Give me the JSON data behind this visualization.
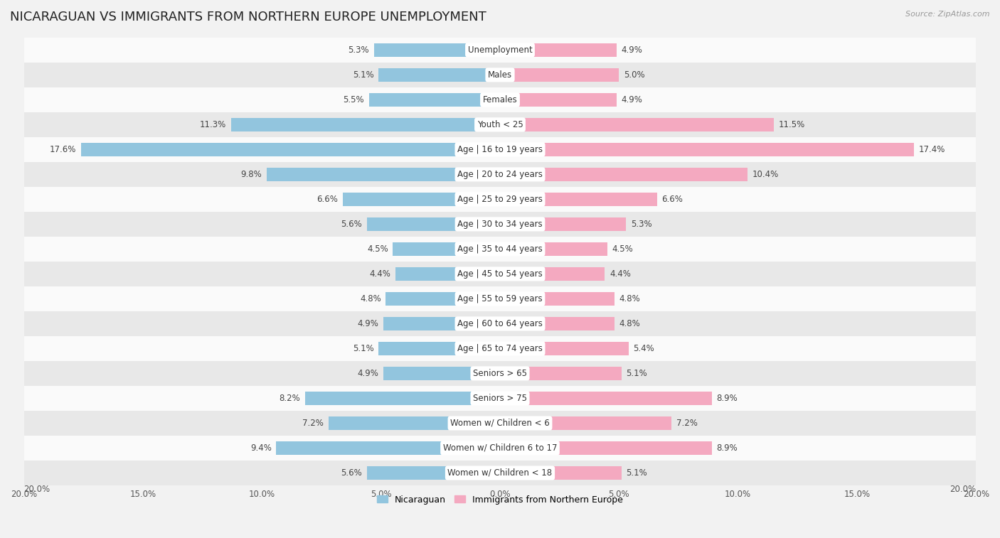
{
  "title": "NICARAGUAN VS IMMIGRANTS FROM NORTHERN EUROPE UNEMPLOYMENT",
  "source": "Source: ZipAtlas.com",
  "categories": [
    "Unemployment",
    "Males",
    "Females",
    "Youth < 25",
    "Age | 16 to 19 years",
    "Age | 20 to 24 years",
    "Age | 25 to 29 years",
    "Age | 30 to 34 years",
    "Age | 35 to 44 years",
    "Age | 45 to 54 years",
    "Age | 55 to 59 years",
    "Age | 60 to 64 years",
    "Age | 65 to 74 years",
    "Seniors > 65",
    "Seniors > 75",
    "Women w/ Children < 6",
    "Women w/ Children 6 to 17",
    "Women w/ Children < 18"
  ],
  "nicaraguan": [
    5.3,
    5.1,
    5.5,
    11.3,
    17.6,
    9.8,
    6.6,
    5.6,
    4.5,
    4.4,
    4.8,
    4.9,
    5.1,
    4.9,
    8.2,
    7.2,
    9.4,
    5.6
  ],
  "northern_europe": [
    4.9,
    5.0,
    4.9,
    11.5,
    17.4,
    10.4,
    6.6,
    5.3,
    4.5,
    4.4,
    4.8,
    4.8,
    5.4,
    5.1,
    8.9,
    7.2,
    8.9,
    5.1
  ],
  "nicaraguan_color": "#92c5de",
  "northern_europe_color": "#f4a9c0",
  "background_color": "#f2f2f2",
  "row_bg_white": "#fafafa",
  "row_bg_gray": "#e8e8e8",
  "axis_max": 20.0,
  "legend_nicaraguan": "Nicaraguan",
  "legend_northern_europe": "Immigrants from Northern Europe",
  "title_fontsize": 13,
  "label_fontsize": 8.5,
  "value_fontsize": 8.5
}
